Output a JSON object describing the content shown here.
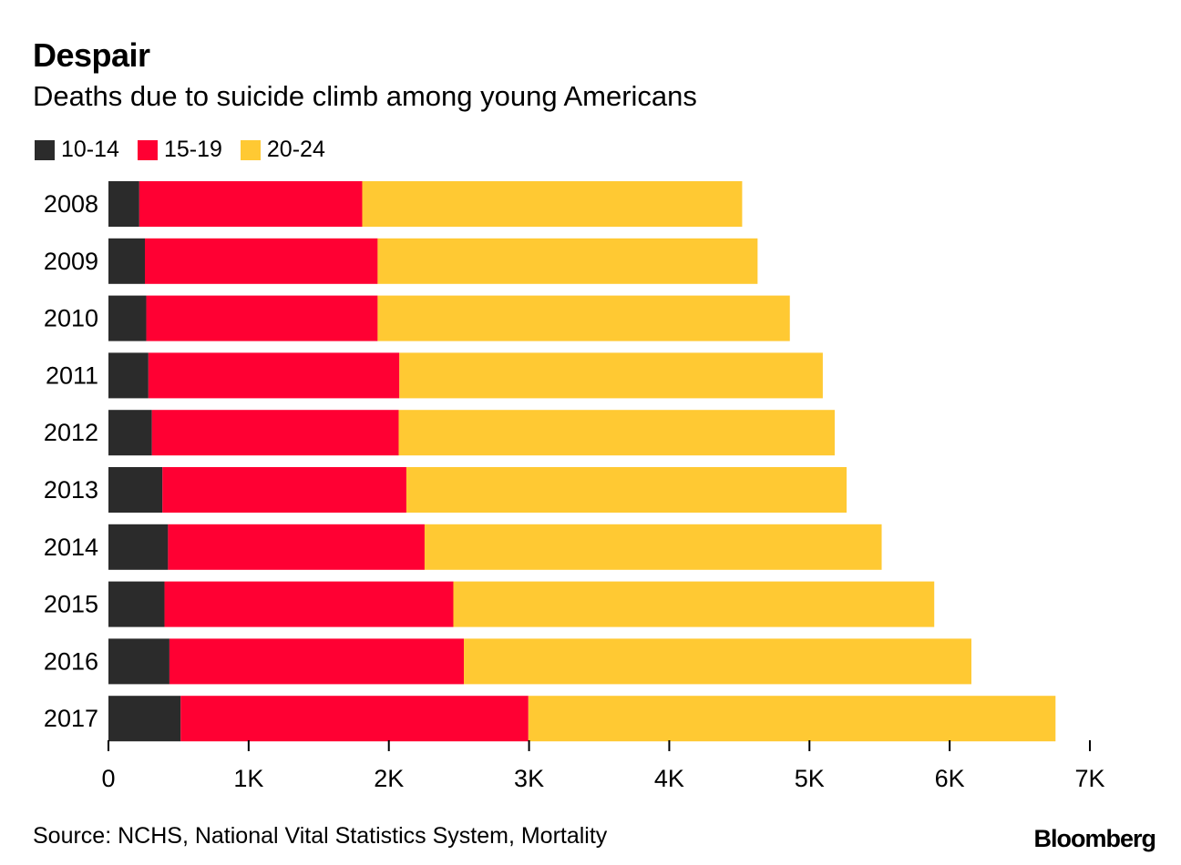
{
  "header": {
    "title": "Despair",
    "subtitle": "Deaths due to suicide climb among young Americans"
  },
  "footer": {
    "source": "Source: NCHS, National Vital Statistics System, Mortality",
    "logo": "Bloomberg"
  },
  "colors": {
    "series_10_14": "#2b2b2b",
    "series_15_19": "#ff0033",
    "series_20_24": "#ffc933",
    "axis": "#000000"
  },
  "chart_data": {
    "type": "bar",
    "orientation": "horizontal",
    "stacked": true,
    "title": "Despair",
    "subtitle": "Deaths due to suicide climb among young Americans",
    "categories": [
      "2008",
      "2009",
      "2010",
      "2011",
      "2012",
      "2013",
      "2014",
      "2015",
      "2016",
      "2017"
    ],
    "series": [
      {
        "name": "10-14",
        "color": "#2b2b2b",
        "values": [
          220,
          260,
          270,
          285,
          310,
          385,
          425,
          400,
          435,
          515
        ]
      },
      {
        "name": "15-19",
        "color": "#ff0033",
        "values": [
          1590,
          1660,
          1650,
          1790,
          1760,
          1740,
          1830,
          2060,
          2100,
          2480
        ]
      },
      {
        "name": "20-24",
        "color": "#ffc933",
        "values": [
          2710,
          2710,
          2940,
          3020,
          3110,
          3140,
          3260,
          3430,
          3620,
          3760
        ]
      }
    ],
    "xlim": [
      0,
      7000
    ],
    "xticks": [
      0,
      1000,
      2000,
      3000,
      4000,
      5000,
      6000,
      7000
    ],
    "xtick_labels": [
      "0",
      "1K",
      "2K",
      "3K",
      "4K",
      "5K",
      "6K",
      "7K"
    ],
    "legend_position": "top-left",
    "xlabel": "",
    "ylabel": ""
  }
}
